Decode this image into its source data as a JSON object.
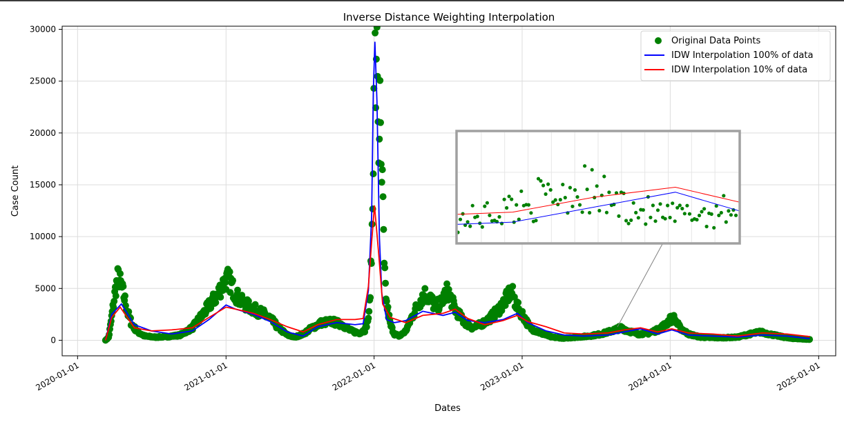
{
  "chart_data": {
    "type": "scatter",
    "title": "Inverse Distance Weighting Interpolation",
    "xlabel": "Dates",
    "ylabel": "Case Count",
    "x_axis": "date",
    "xlim": [
      "2019-11-24",
      "2025-02-12"
    ],
    "ylim": [
      -1500,
      30300
    ],
    "x_ticks": [
      "2020-01-01",
      "2021-01-01",
      "2022-01-01",
      "2023-01-01",
      "2024-01-01",
      "2025-01-01"
    ],
    "y_ticks": [
      0,
      5000,
      10000,
      15000,
      20000,
      25000,
      30000
    ],
    "grid": true,
    "legend_position": "top-right",
    "colors": {
      "scatter": "#008000",
      "idw_full": "#0000ff",
      "idw_10": "#ff0000",
      "inset_frame": "#a0a0a0"
    },
    "series": [
      {
        "name": "Original Data Points",
        "kind": "scatter",
        "x": [
          "2020-03-10",
          "2020-03-18",
          "2020-03-26",
          "2020-04-03",
          "2020-04-10",
          "2020-04-18",
          "2020-04-26",
          "2020-05-04",
          "2020-05-14",
          "2020-05-28",
          "2020-06-15",
          "2020-07-10",
          "2020-08-10",
          "2020-09-10",
          "2020-10-10",
          "2020-11-05",
          "2020-11-25",
          "2020-12-10",
          "2020-12-22",
          "2021-01-05",
          "2021-01-14",
          "2021-01-22",
          "2021-02-05",
          "2021-02-20",
          "2021-03-10",
          "2021-04-01",
          "2021-04-20",
          "2021-05-10",
          "2021-06-01",
          "2021-06-20",
          "2021-07-10",
          "2021-08-01",
          "2021-08-25",
          "2021-09-20",
          "2021-10-15",
          "2021-11-05",
          "2021-11-25",
          "2021-12-10",
          "2021-12-20",
          "2021-12-25",
          "2021-12-29",
          "2022-01-01",
          "2022-01-03",
          "2022-01-06",
          "2022-01-09",
          "2022-01-12",
          "2022-01-15",
          "2022-01-18",
          "2022-01-22",
          "2022-01-26",
          "2022-02-01",
          "2022-02-10",
          "2022-02-20",
          "2022-03-05",
          "2022-03-20",
          "2022-04-05",
          "2022-04-20",
          "2022-05-05",
          "2022-05-20",
          "2022-06-01",
          "2022-06-15",
          "2022-07-01",
          "2022-07-20",
          "2022-08-10",
          "2022-09-01",
          "2022-09-20",
          "2022-10-10",
          "2022-11-01",
          "2022-11-20",
          "2022-12-05",
          "2022-12-20",
          "2023-01-05",
          "2023-01-20",
          "2023-02-15",
          "2023-03-15",
          "2023-04-15",
          "2023-05-15",
          "2023-06-15",
          "2023-07-15",
          "2023-08-10",
          "2023-09-01",
          "2023-09-20",
          "2023-10-15",
          "2023-11-10",
          "2023-12-01",
          "2023-12-20",
          "2024-01-01",
          "2024-01-10",
          "2024-01-25",
          "2024-02-15",
          "2024-03-15",
          "2024-04-15",
          "2024-05-15",
          "2024-06-15",
          "2024-07-15",
          "2024-08-10",
          "2024-09-01",
          "2024-09-25",
          "2024-10-20",
          "2024-11-10",
          "2024-12-01",
          "2024-12-10"
        ],
        "y": [
          0,
          300,
          2500,
          4800,
          6200,
          5200,
          4000,
          2600,
          1500,
          800,
          400,
          300,
          350,
          500,
          1200,
          2500,
          3600,
          4300,
          5300,
          6000,
          5400,
          4600,
          3800,
          3400,
          3000,
          2600,
          2100,
          1200,
          500,
          300,
          600,
          1200,
          1700,
          1800,
          1500,
          900,
          700,
          1000,
          2500,
          7500,
          13800,
          30300,
          28000,
          23000,
          29200,
          17500,
          23200,
          16200,
          14300,
          6800,
          3500,
          1500,
          600,
          400,
          900,
          2300,
          3500,
          4500,
          4000,
          3200,
          3600,
          4800,
          3000,
          1800,
          1200,
          1500,
          2000,
          2800,
          3800,
          4800,
          3200,
          2300,
          1200,
          700,
          300,
          200,
          300,
          400,
          600,
          900,
          1200,
          900,
          600,
          700,
          1000,
          1500,
          2000,
          2100,
          1200,
          600,
          300,
          250,
          250,
          300,
          600,
          800,
          600,
          400,
          200,
          150,
          100,
          80
        ]
      },
      {
        "name": "IDW Interpolation 100% of data",
        "kind": "line",
        "x": [
          "2020-03-10",
          "2020-03-25",
          "2020-04-18",
          "2020-05-20",
          "2020-07-01",
          "2020-08-20",
          "2020-10-10",
          "2020-11-20",
          "2021-01-01",
          "2021-01-25",
          "2021-03-10",
          "2021-04-20",
          "2021-06-01",
          "2021-07-10",
          "2021-08-15",
          "2021-10-01",
          "2021-11-15",
          "2021-12-05",
          "2021-12-18",
          "2021-12-26",
          "2021-12-30",
          "2022-01-03",
          "2022-01-08",
          "2022-01-14",
          "2022-01-20",
          "2022-02-01",
          "2022-02-20",
          "2022-03-20",
          "2022-05-01",
          "2022-06-20",
          "2022-07-20",
          "2022-08-20",
          "2022-10-01",
          "2022-11-15",
          "2022-12-20",
          "2023-01-15",
          "2023-03-01",
          "2023-04-15",
          "2023-06-01",
          "2023-08-01",
          "2023-09-10",
          "2023-10-20",
          "2023-12-01",
          "2024-01-05",
          "2024-02-15",
          "2024-04-15",
          "2024-06-15",
          "2024-08-15",
          "2024-10-15",
          "2024-12-10"
        ],
        "y": [
          0,
          2500,
          3500,
          1500,
          900,
          600,
          900,
          2000,
          3400,
          3000,
          2500,
          1800,
          800,
          400,
          1300,
          1700,
          1500,
          1600,
          4800,
          12000,
          24000,
          28800,
          23000,
          10000,
          4500,
          2000,
          1700,
          1900,
          2800,
          2400,
          2700,
          1900,
          1700,
          2000,
          2600,
          1700,
          900,
          500,
          400,
          500,
          800,
          1100,
          600,
          1000,
          500,
          400,
          300,
          500,
          400,
          150
        ]
      },
      {
        "name": "IDW Interpolation 10% of data",
        "kind": "line",
        "x": [
          "2020-03-10",
          "2020-03-25",
          "2020-04-15",
          "2020-05-20",
          "2020-07-01",
          "2020-08-20",
          "2020-10-10",
          "2020-11-20",
          "2021-01-01",
          "2021-01-25",
          "2021-03-10",
          "2021-04-20",
          "2021-06-01",
          "2021-07-10",
          "2021-08-15",
          "2021-10-01",
          "2021-11-15",
          "2021-12-05",
          "2021-12-18",
          "2021-12-26",
          "2022-01-02",
          "2022-01-12",
          "2022-01-22",
          "2022-02-10",
          "2022-03-20",
          "2022-05-01",
          "2022-06-20",
          "2022-07-20",
          "2022-08-20",
          "2022-10-01",
          "2022-11-15",
          "2022-12-20",
          "2023-01-15",
          "2023-03-01",
          "2023-04-15",
          "2023-06-01",
          "2023-08-01",
          "2023-09-10",
          "2023-10-20",
          "2023-12-01",
          "2024-01-05",
          "2024-02-15",
          "2024-04-15",
          "2024-06-15",
          "2024-08-15",
          "2024-10-15",
          "2024-12-10"
        ],
        "y": [
          0,
          2200,
          3200,
          1200,
          900,
          1000,
          1200,
          2200,
          3200,
          3000,
          2600,
          2000,
          1300,
          800,
          1500,
          2000,
          2000,
          2100,
          5200,
          9500,
          13000,
          8500,
          3500,
          2200,
          1700,
          2400,
          2600,
          3000,
          2100,
          1500,
          1900,
          2400,
          1800,
          1300,
          700,
          600,
          700,
          1000,
          1200,
          800,
          1100,
          700,
          600,
          400,
          700,
          600,
          350
        ]
      }
    ],
    "inset": {
      "zoom_of": "region around 2023-09",
      "xlim": [
        "2023-07-05",
        "2023-11-20"
      ],
      "ylim": [
        100,
        2300
      ]
    }
  }
}
